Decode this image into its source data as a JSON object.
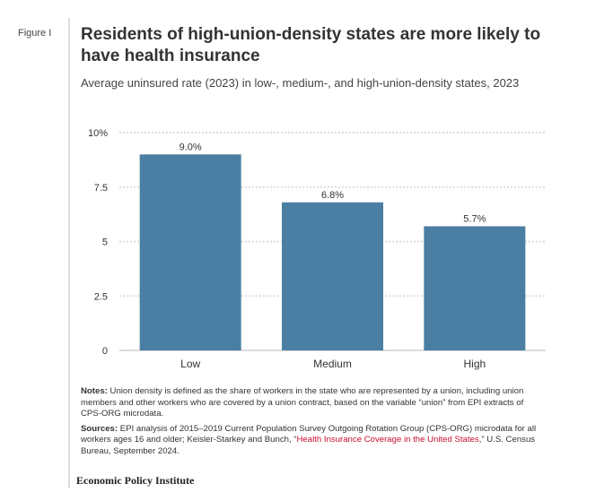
{
  "figure_label": "Figure I",
  "title": "Residents of high-union-density states are more likely to have health insurance",
  "subtitle": "Average uninsured rate (2023) in low-, medium-, and high-union-density states, 2023",
  "chart_data": {
    "type": "bar",
    "categories": [
      "Low",
      "Medium",
      "High"
    ],
    "values": [
      9.0,
      6.8,
      5.7
    ],
    "data_labels": [
      "9.0%",
      "6.8%",
      "5.7%"
    ],
    "ylim": [
      0,
      10
    ],
    "yticks": [
      0,
      2.5,
      5,
      7.5,
      10
    ],
    "ytick_labels": [
      "0",
      "2.5",
      "5",
      "7.5",
      "10%"
    ],
    "grid": true,
    "bar_color": "#4a7fa3"
  },
  "notes": {
    "label": "Notes:",
    "text": " Union density is defined as the share of workers in the state who are represented by a union, including union members and other workers who are covered by a union contract, based on the variable “union” from EPI extracts of CPS-ORG microdata."
  },
  "sources": {
    "label": "Sources:",
    "text": " EPI analysis of 2015–2019 Current Population Survey Outgoing Rotation Group (CPS-ORG) microdata for all workers ages 16 and older; Keisler-Starkey and Bunch, “",
    "link": "Health Insurance Coverage in the United States",
    "tail": ",” U.S. Census Bureau, September 2024."
  },
  "footer": "Economic Policy Institute"
}
